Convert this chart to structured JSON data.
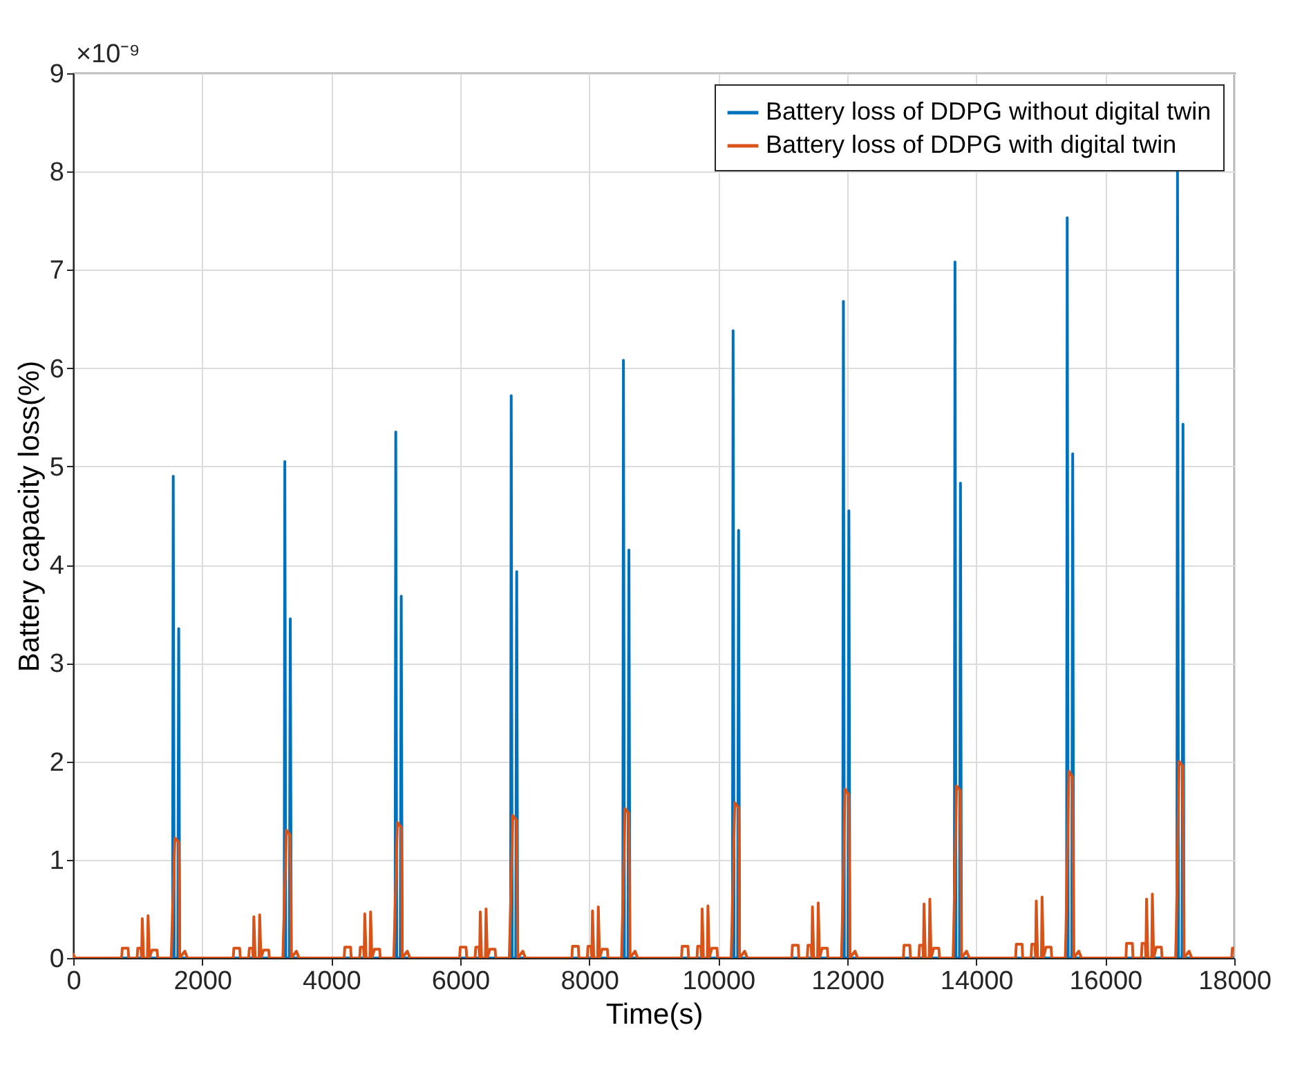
{
  "chart_data": {
    "type": "line",
    "xlabel": "Time(s)",
    "ylabel": "Battery capacity loss(%)",
    "annotations": [
      "×10⁻⁹"
    ],
    "xlim": [
      0,
      18000
    ],
    "xticks": [
      0,
      2000,
      4000,
      6000,
      8000,
      10000,
      12000,
      14000,
      16000,
      18000
    ],
    "ylim": [
      0,
      9
    ],
    "yticks": [
      0,
      1,
      2,
      3,
      4,
      5,
      6,
      7,
      8,
      9
    ],
    "grid": true,
    "legend": "top right",
    "marker": "none",
    "line_style": "solid",
    "series": [
      {
        "name": "Battery loss of DDPG without digital twin",
        "color": "#0072bd",
        "x": [
          0,
          1540,
          1550,
          1565,
          1620,
          1635,
          1650,
          3270,
          3280,
          3295,
          3350,
          3365,
          3380,
          4990,
          5000,
          5015,
          5070,
          5085,
          5100,
          6780,
          6790,
          6805,
          6860,
          6875,
          6890,
          8520,
          8530,
          8545,
          8600,
          8615,
          8630,
          10220,
          10230,
          10245,
          10300,
          10315,
          10330,
          11930,
          11940,
          11955,
          12010,
          12025,
          12040,
          13660,
          13670,
          13685,
          13740,
          13755,
          13770,
          15400,
          15410,
          15425,
          15480,
          15495,
          15510,
          17110,
          17120,
          17135,
          17190,
          17205,
          17220,
          18000
        ],
        "values": [
          0,
          0,
          4.9,
          0,
          0,
          3.35,
          0,
          0,
          5.05,
          0,
          0,
          3.45,
          0,
          0,
          5.35,
          0,
          0,
          3.68,
          0,
          0,
          5.72,
          0,
          0,
          3.93,
          0,
          0,
          6.08,
          0,
          0,
          4.15,
          0,
          0,
          6.38,
          0,
          0,
          4.35,
          0,
          0,
          6.68,
          0,
          0,
          4.55,
          0,
          0,
          7.08,
          0,
          0,
          4.83,
          0,
          0,
          7.53,
          0,
          0,
          5.13,
          0,
          0,
          8.0,
          0,
          0,
          5.43,
          0,
          0
        ]
      },
      {
        "name": "Battery loss of DDPG with digital twin",
        "color": "#d95319",
        "x": [
          0,
          20,
          750,
          760,
          850,
          860,
          990,
          1000,
          1050,
          1060,
          1070,
          1090,
          1150,
          1160,
          1180,
          1220,
          1300,
          1310,
          1520,
          1530,
          1575,
          1635,
          1650,
          1730,
          1770,
          2480,
          2490,
          2580,
          2590,
          2720,
          2730,
          2780,
          2790,
          2800,
          2820,
          2880,
          2890,
          2910,
          2950,
          3030,
          3040,
          3250,
          3260,
          3305,
          3365,
          3380,
          3460,
          3500,
          4200,
          4210,
          4300,
          4310,
          4440,
          4450,
          4500,
          4510,
          4520,
          4540,
          4600,
          4610,
          4630,
          4670,
          4750,
          4760,
          4970,
          4980,
          5025,
          5085,
          5100,
          5180,
          5220,
          5990,
          6000,
          6090,
          6100,
          6230,
          6240,
          6290,
          6300,
          6310,
          6330,
          6390,
          6400,
          6420,
          6460,
          6540,
          6550,
          6760,
          6770,
          6815,
          6875,
          6890,
          6970,
          7010,
          7730,
          7740,
          7830,
          7840,
          7970,
          7980,
          8030,
          8040,
          8050,
          8070,
          8130,
          8140,
          8160,
          8200,
          8280,
          8290,
          8500,
          8510,
          8555,
          8615,
          8630,
          8710,
          8750,
          9430,
          9440,
          9530,
          9540,
          9670,
          9680,
          9730,
          9740,
          9750,
          9770,
          9830,
          9840,
          9860,
          9900,
          9980,
          9990,
          10200,
          10210,
          10255,
          10315,
          10330,
          10410,
          10450,
          11140,
          11150,
          11240,
          11250,
          11380,
          11390,
          11440,
          11450,
          11460,
          11480,
          11540,
          11550,
          11570,
          11610,
          11690,
          11700,
          11910,
          11920,
          11965,
          12025,
          12040,
          12120,
          12160,
          12870,
          12880,
          12970,
          12980,
          13110,
          13120,
          13170,
          13180,
          13190,
          13210,
          13270,
          13280,
          13300,
          13340,
          13420,
          13430,
          13640,
          13650,
          13695,
          13755,
          13770,
          13850,
          13890,
          14610,
          14620,
          14710,
          14720,
          14850,
          14860,
          14910,
          14920,
          14930,
          14950,
          15010,
          15020,
          15040,
          15080,
          15160,
          15170,
          15380,
          15390,
          15435,
          15495,
          15510,
          15590,
          15630,
          16320,
          16330,
          16420,
          16430,
          16560,
          16570,
          16620,
          16630,
          16640,
          16660,
          16720,
          16730,
          16750,
          16790,
          16870,
          16880,
          17090,
          17100,
          17145,
          17205,
          17220,
          17300,
          17340,
          17960,
          17970,
          18000
        ],
        "values": [
          0.05,
          0,
          0,
          0.1,
          0.1,
          0,
          0,
          0.1,
          0.1,
          0,
          0.4,
          0,
          0,
          0.43,
          0,
          0.08,
          0.08,
          0,
          0,
          0.25,
          1.22,
          1.18,
          0,
          0.07,
          0,
          0,
          0.1,
          0.1,
          0,
          0,
          0.1,
          0.1,
          0,
          0.42,
          0,
          0,
          0.44,
          0,
          0.08,
          0.08,
          0,
          0,
          0.25,
          1.3,
          1.25,
          0,
          0.07,
          0,
          0,
          0.11,
          0.11,
          0,
          0,
          0.11,
          0.11,
          0,
          0.45,
          0,
          0,
          0.47,
          0,
          0.09,
          0.09,
          0,
          0,
          0.25,
          1.38,
          1.33,
          0,
          0.07,
          0,
          0,
          0.11,
          0.11,
          0,
          0,
          0.11,
          0.11,
          0,
          0.47,
          0,
          0,
          0.5,
          0,
          0.09,
          0.09,
          0,
          0,
          0.25,
          1.45,
          1.4,
          0,
          0.07,
          0,
          0,
          0.12,
          0.12,
          0,
          0,
          0.12,
          0.12,
          0,
          0.48,
          0,
          0,
          0.52,
          0,
          0.09,
          0.09,
          0,
          0,
          0.25,
          1.52,
          1.47,
          0,
          0.07,
          0,
          0,
          0.12,
          0.12,
          0,
          0,
          0.12,
          0.12,
          0,
          0.5,
          0,
          0,
          0.53,
          0,
          0.1,
          0.1,
          0,
          0,
          0.25,
          1.58,
          1.53,
          0,
          0.07,
          0,
          0,
          0.13,
          0.13,
          0,
          0,
          0.13,
          0.13,
          0,
          0.52,
          0,
          0,
          0.56,
          0,
          0.1,
          0.1,
          0,
          0,
          0.25,
          1.72,
          1.66,
          0,
          0.07,
          0,
          0,
          0.13,
          0.13,
          0,
          0,
          0.13,
          0.13,
          0,
          0.55,
          0,
          0,
          0.6,
          0,
          0.1,
          0.1,
          0,
          0,
          0.25,
          1.75,
          1.7,
          0,
          0.07,
          0,
          0,
          0.14,
          0.14,
          0,
          0,
          0.14,
          0.14,
          0,
          0.58,
          0,
          0,
          0.62,
          0,
          0.11,
          0.11,
          0,
          0,
          0.25,
          1.9,
          1.84,
          0,
          0.07,
          0,
          0,
          0.15,
          0.15,
          0,
          0,
          0.15,
          0.15,
          0,
          0.6,
          0,
          0,
          0.65,
          0,
          0.11,
          0.11,
          0,
          0,
          0.25,
          2.0,
          1.95,
          0,
          0.07,
          0,
          0,
          0.1,
          0.1
        ]
      }
    ]
  }
}
